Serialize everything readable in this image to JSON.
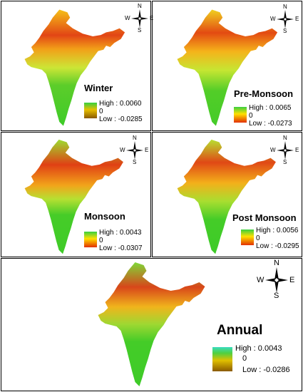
{
  "panels": [
    {
      "id": "winter",
      "title": "Winter",
      "legend": {
        "high_label": "High : 0.0060",
        "zero_label": "0",
        "low_label": "Low : -0.0285"
      },
      "ramp": [
        "#33cc33",
        "#e8c000",
        "#8a5a00"
      ]
    },
    {
      "id": "pre-monsoon",
      "title": "Pre-Monsoon",
      "legend": {
        "high_label": "High : 0.0065",
        "zero_label": "0",
        "low_label": "Low : -0.0273"
      },
      "ramp": [
        "#33cc33",
        "#ffee00",
        "#e63300"
      ]
    },
    {
      "id": "monsoon",
      "title": "Monsoon",
      "legend": {
        "high_label": "High : 0.0043",
        "zero_label": "0",
        "low_label": "Low : -0.0307"
      },
      "ramp": [
        "#33cc33",
        "#ffcc00",
        "#e60000"
      ]
    },
    {
      "id": "post-monsoon",
      "title": "Post Monsoon",
      "legend": {
        "high_label": "High : 0.0056",
        "zero_label": "0",
        "low_label": "Low : -0.0295"
      },
      "ramp": [
        "#33cc33",
        "#ffee00",
        "#e63300"
      ]
    },
    {
      "id": "annual",
      "title": "Annual",
      "legend": {
        "high_label": "High : 0.0043",
        "zero_label": "0",
        "low_label": "Low : -0.0286"
      },
      "ramp": [
        "#33ddaa",
        "#e8c000",
        "#8a5a00"
      ]
    }
  ],
  "compass": {
    "north": "N",
    "south": "S",
    "east": "E",
    "west": "W"
  },
  "map_colors": {
    "hot": "#d83a10",
    "warm": "#f7c018",
    "mid": "#c8e830",
    "green": "#40cc2a",
    "peninsula": "#3acb28"
  }
}
